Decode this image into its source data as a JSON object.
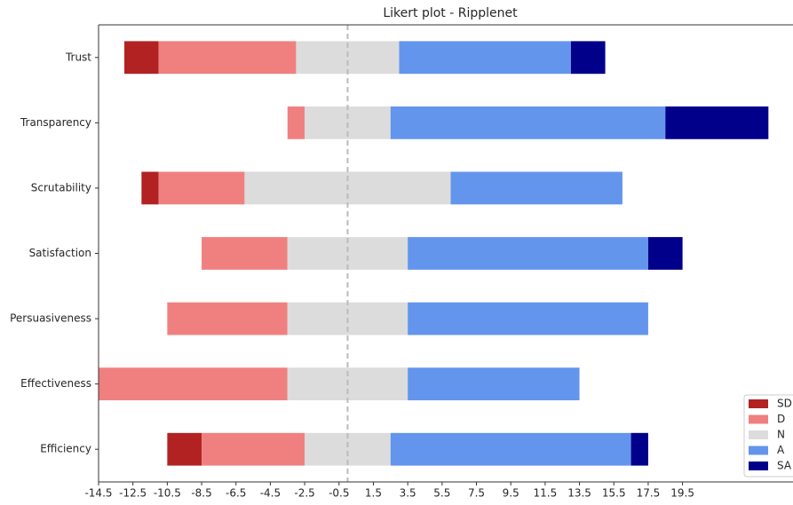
{
  "chart_data": {
    "type": "likert",
    "title": "Likert plot - Ripplenet",
    "categories": [
      "Trust",
      "Transparency",
      "Scrutability",
      "Satisfaction",
      "Persuasiveness",
      "Effectiveness",
      "Efficiency"
    ],
    "series": [
      {
        "name": "SD",
        "color": "#b22222",
        "values": [
          2,
          0,
          1,
          0,
          0,
          0,
          2
        ]
      },
      {
        "name": "D",
        "color": "#f08080",
        "values": [
          8,
          1,
          5,
          5,
          7,
          11,
          6
        ]
      },
      {
        "name": "N",
        "color": "#dcdcdc",
        "values": [
          6,
          5,
          12,
          7,
          7,
          7,
          5
        ]
      },
      {
        "name": "A",
        "color": "#6495ed",
        "values": [
          10,
          16,
          10,
          14,
          14,
          10,
          14
        ]
      },
      {
        "name": "SA",
        "color": "#00008b",
        "values": [
          2,
          6,
          0,
          2,
          0,
          0,
          1
        ]
      }
    ],
    "neutral_series": 2,
    "reference_line": 0,
    "xlim": [
      -14.5,
      26.5
    ],
    "xticks": [
      -14.5,
      -12.5,
      -10.5,
      -8.5,
      -6.5,
      -4.5,
      -2.5,
      -0.5,
      1.5,
      3.5,
      5.5,
      7.5,
      9.5,
      11.5,
      13.5,
      15.5,
      17.5,
      19.5
    ],
    "legend": "lower right"
  }
}
